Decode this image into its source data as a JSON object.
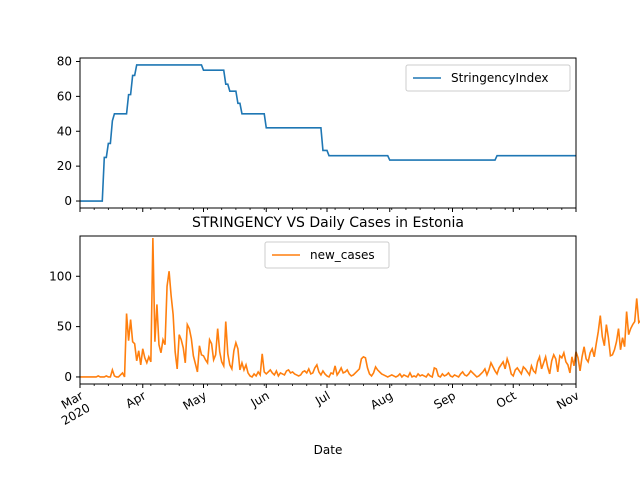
{
  "chart_data": [
    {
      "type": "line",
      "title": "",
      "xlabel": "",
      "ylabel": "",
      "x_range": [
        "2020-03-01",
        "2020-11-01"
      ],
      "ylim": [
        -4,
        82
      ],
      "yticks": [
        0,
        20,
        40,
        60,
        80
      ],
      "grid": false,
      "legend_position": "upper right",
      "series": [
        {
          "name": "StringencyIndex",
          "color": "#1f77b4",
          "points": [
            [
              "2020-03-01",
              0
            ],
            [
              "2020-03-12",
              0
            ],
            [
              "2020-03-13",
              25
            ],
            [
              "2020-03-14",
              25
            ],
            [
              "2020-03-15",
              33
            ],
            [
              "2020-03-16",
              33
            ],
            [
              "2020-03-17",
              46
            ],
            [
              "2020-03-18",
              50
            ],
            [
              "2020-03-24",
              50
            ],
            [
              "2020-03-25",
              61
            ],
            [
              "2020-03-26",
              61
            ],
            [
              "2020-03-27",
              72
            ],
            [
              "2020-03-28",
              72
            ],
            [
              "2020-03-29",
              78
            ],
            [
              "2020-04-30",
              78
            ],
            [
              "2020-05-01",
              75
            ],
            [
              "2020-05-11",
              75
            ],
            [
              "2020-05-12",
              67
            ],
            [
              "2020-05-13",
              67
            ],
            [
              "2020-05-14",
              63
            ],
            [
              "2020-05-17",
              63
            ],
            [
              "2020-05-18",
              56
            ],
            [
              "2020-05-19",
              56
            ],
            [
              "2020-05-20",
              50
            ],
            [
              "2020-05-31",
              50
            ],
            [
              "2020-06-01",
              42
            ],
            [
              "2020-06-28",
              42
            ],
            [
              "2020-06-29",
              29
            ],
            [
              "2020-07-01",
              29
            ],
            [
              "2020-07-02",
              26
            ],
            [
              "2020-07-31",
              26
            ],
            [
              "2020-08-01",
              23.5
            ],
            [
              "2020-09-22",
              23.5
            ],
            [
              "2020-09-23",
              26
            ],
            [
              "2020-11-01",
              26
            ]
          ]
        }
      ]
    },
    {
      "type": "line",
      "title": "STRINGENCY VS Daily Cases in Estonia",
      "xlabel": "Date",
      "ylabel": "",
      "x_range": [
        "2020-03-01",
        "2020-11-01"
      ],
      "ylim": [
        -7,
        140
      ],
      "yticks": [
        0,
        50,
        100
      ],
      "xtick_labels": [
        "Mar\n2020",
        "Apr",
        "May",
        "Jun",
        "Jul",
        "Aug",
        "Sep",
        "Oct",
        "Nov"
      ],
      "xtick_dates": [
        "2020-03-01",
        "2020-04-01",
        "2020-05-01",
        "2020-06-01",
        "2020-07-01",
        "2020-08-01",
        "2020-09-01",
        "2020-10-01",
        "2020-11-01"
      ],
      "grid": false,
      "legend_position": "upper center",
      "series": [
        {
          "name": "new_cases",
          "color": "#ff7f0e",
          "start_date": "2020-03-01",
          "values": [
            0,
            0,
            0,
            0,
            0,
            0,
            0,
            0,
            0,
            1,
            0,
            0,
            0,
            1,
            0,
            0,
            7,
            1,
            0,
            0,
            2,
            4,
            0,
            63,
            36,
            57,
            35,
            33,
            16,
            26,
            12,
            28,
            19,
            14,
            20,
            15,
            138,
            35,
            72,
            32,
            24,
            37,
            32,
            90,
            105,
            81,
            62,
            25,
            8,
            42,
            37,
            29,
            14,
            52,
            48,
            38,
            21,
            13,
            5,
            31,
            22,
            21,
            17,
            14,
            37,
            33,
            17,
            22,
            48,
            25,
            15,
            11,
            55,
            23,
            12,
            8,
            26,
            34,
            28,
            7,
            14,
            7,
            12,
            4,
            1,
            0,
            3,
            1,
            5,
            2,
            23,
            5,
            3,
            5,
            7,
            4,
            2,
            6,
            1,
            4,
            3,
            2,
            6,
            7,
            4,
            5,
            3,
            2,
            1,
            2,
            5,
            6,
            4,
            8,
            3,
            4,
            9,
            12,
            5,
            2,
            6,
            3,
            1,
            0,
            4,
            3,
            11,
            2,
            5,
            9,
            4,
            5,
            7,
            3,
            1,
            2,
            4,
            6,
            8,
            18,
            20,
            19,
            9,
            3,
            1,
            4,
            10,
            7,
            5,
            3,
            2,
            1,
            0,
            1,
            2,
            1,
            0,
            1,
            3,
            0,
            2,
            1,
            0,
            4,
            0,
            1,
            0,
            3,
            1,
            2,
            1,
            0,
            3,
            1,
            0,
            9,
            8,
            1,
            0,
            3,
            1,
            2,
            4,
            1,
            0,
            2,
            1,
            0,
            3,
            5,
            2,
            1,
            3,
            6,
            4,
            2,
            0,
            1,
            3,
            5,
            8,
            2,
            7,
            14,
            10,
            6,
            3,
            9,
            12,
            15,
            8,
            18,
            12,
            3,
            1,
            7,
            9,
            6,
            3,
            10,
            8,
            5,
            2,
            11,
            6,
            4,
            15,
            20,
            8,
            14,
            20,
            10,
            3,
            16,
            22,
            18,
            5,
            21,
            19,
            24,
            15,
            12,
            4,
            20,
            11,
            25,
            19,
            6,
            20,
            30,
            18,
            15,
            24,
            28,
            20,
            33,
            45,
            61,
            40,
            31,
            52,
            39,
            21,
            22,
            27,
            35,
            48,
            27,
            39,
            30,
            65,
            42,
            48,
            52,
            55,
            78,
            54,
            56,
            70,
            20,
            28,
            44,
            31,
            50,
            15,
            61,
            36,
            29,
            21,
            34,
            40,
            38,
            30,
            44,
            52,
            33,
            25,
            19,
            30,
            26,
            22,
            36,
            29,
            38,
            28,
            7,
            35,
            38,
            44,
            40,
            55,
            76,
            50,
            58,
            42,
            55,
            60,
            18,
            53,
            125,
            60,
            80,
            96,
            138,
            80
          ]
        }
      ]
    }
  ]
}
